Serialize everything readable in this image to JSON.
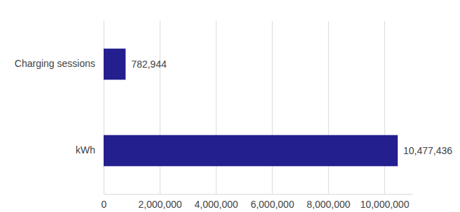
{
  "chart_data": {
    "type": "bar",
    "orientation": "horizontal",
    "categories": [
      "Charging sessions",
      "kWh"
    ],
    "values": [
      782944,
      10477436
    ],
    "value_labels": [
      "782,944",
      "10,477,436"
    ],
    "data_labels": true,
    "color": "#231f8f",
    "xlim": [
      0,
      11000000
    ],
    "xticks": [
      0,
      {
        "value": 2000000,
        "label": "2,000,000"
      },
      {
        "value": 4000000,
        "label": "4,000,000"
      },
      {
        "value": 6000000,
        "label": "6,000,000"
      },
      {
        "value": 8000000,
        "label": "8,000,000"
      },
      {
        "value": 10000000,
        "label": "10,000,000"
      }
    ],
    "grid": true
  }
}
